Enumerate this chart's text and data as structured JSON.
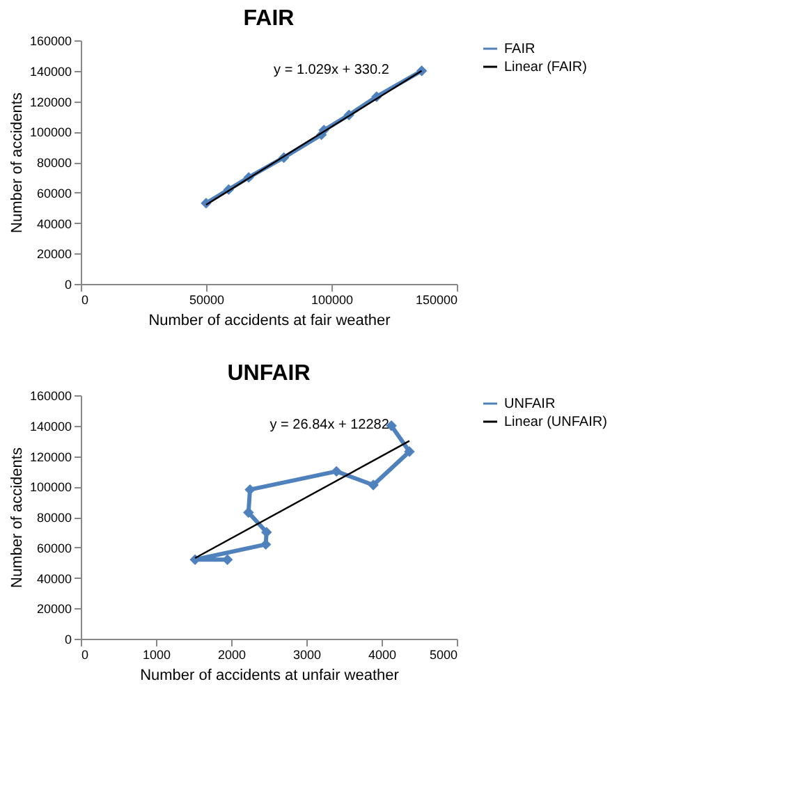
{
  "chart_data": [
    {
      "type": "line",
      "title": "FAIR",
      "xlabel": "Number of accidents at fair weather",
      "ylabel": "Number of accidents",
      "xlim": [
        0,
        150000
      ],
      "xticks": [
        0,
        50000,
        100000,
        150000
      ],
      "ylim": [
        0,
        160000
      ],
      "yticks": [
        0,
        20000,
        40000,
        60000,
        80000,
        100000,
        120000,
        140000,
        160000
      ],
      "grid": false,
      "legend": "right",
      "annotations": [
        "y = 1.029x + 330.2"
      ],
      "series": [
        {
          "name": "FAIR",
          "color": "#4f81bd",
          "marker": "diamond",
          "x": [
            50000,
            59000,
            67000,
            81000,
            96000,
            97000,
            107000,
            118000,
            136000
          ],
          "values": [
            53000,
            62000,
            70000,
            83000,
            98000,
            101000,
            111000,
            123000,
            140000
          ]
        },
        {
          "name": "Linear (FAIR)",
          "color": "#000000",
          "marker": "none",
          "x": [
            50000,
            136000
          ],
          "values": [
            52000,
            140000
          ]
        }
      ]
    },
    {
      "type": "line",
      "title": "UNFAIR",
      "xlabel": "Number of accidents at unfair weather",
      "ylabel": "Number of accidents",
      "xlim": [
        0,
        5000
      ],
      "xticks": [
        0,
        1000,
        2000,
        3000,
        4000,
        5000
      ],
      "ylim": [
        0,
        160000
      ],
      "yticks": [
        0,
        20000,
        40000,
        60000,
        80000,
        100000,
        120000,
        140000,
        160000
      ],
      "grid": false,
      "legend": "right",
      "annotations": [
        "y = 26.84x + 12282"
      ],
      "series": [
        {
          "name": "UNFAIR",
          "color": "#4f81bd",
          "marker": "diamond",
          "x": [
            4130,
            4370,
            3890,
            3400,
            2250,
            2230,
            2470,
            2460,
            1520,
            1950
          ],
          "values": [
            140000,
            123000,
            101000,
            110000,
            98000,
            83000,
            70000,
            62000,
            52000,
            52000
          ]
        },
        {
          "name": "Linear (UNFAIR)",
          "color": "#000000",
          "marker": "none",
          "x": [
            1520,
            4370
          ],
          "values": [
            53000,
            130000
          ]
        }
      ]
    }
  ]
}
